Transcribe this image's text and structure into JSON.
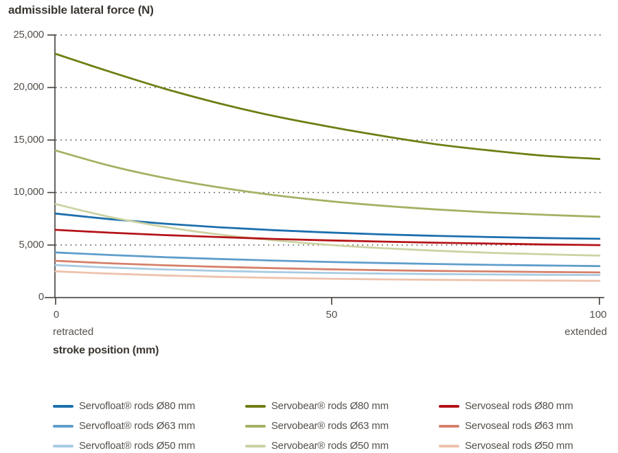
{
  "title": "admissible lateral force (N)",
  "axes": {
    "y_label": "admissible lateral force (N)",
    "x_label": "stroke position (mm)",
    "y_ticks": [
      "25,000",
      "20,000",
      "15,000",
      "10,000",
      "5,000",
      "0"
    ],
    "x_ticks": [
      "0",
      "50",
      "100"
    ],
    "x_annotation_left": "retracted",
    "x_annotation_right": "extended"
  },
  "chart_data": {
    "type": "line",
    "title": "admissible lateral force (N)",
    "xlabel": "stroke position (mm)",
    "ylabel": "admissible lateral force (N)",
    "xlim": [
      0,
      100
    ],
    "ylim": [
      0,
      25000
    ],
    "x_tick_values": [
      0,
      50,
      100
    ],
    "y_tick_values": [
      0,
      5000,
      10000,
      15000,
      20000,
      25000
    ],
    "grid": "horizontal-dotted",
    "legend_position": "below",
    "x": [
      0,
      10,
      20,
      30,
      40,
      50,
      60,
      70,
      80,
      90,
      100
    ],
    "series": [
      {
        "name": "Servofloat® rods Ø50 mm",
        "color": "#a7cbe2",
        "values": [
          3100,
          2860,
          2680,
          2540,
          2430,
          2350,
          2290,
          2240,
          2200,
          2170,
          2150
        ]
      },
      {
        "name": "Servofloat® rods Ø63 mm",
        "color": "#5f9dcb",
        "values": [
          4300,
          4060,
          3850,
          3680,
          3530,
          3400,
          3290,
          3200,
          3120,
          3060,
          3000
        ]
      },
      {
        "name": "Servofloat® rods Ø80 mm",
        "color": "#1c6fad",
        "values": [
          8000,
          7470,
          7040,
          6700,
          6420,
          6200,
          6020,
          5880,
          5760,
          5670,
          5600
        ]
      },
      {
        "name": "Servobear® rods Ø50 mm",
        "color": "#ccd2a2",
        "values": [
          8900,
          7680,
          6740,
          6010,
          5460,
          5030,
          4710,
          4460,
          4260,
          4120,
          4000
        ]
      },
      {
        "name": "Servobear® rods Ø63 mm",
        "color": "#a6b063",
        "values": [
          14000,
          12550,
          11400,
          10500,
          9770,
          9200,
          8750,
          8390,
          8100,
          7880,
          7700
        ]
      },
      {
        "name": "Servobear® rods Ø80 mm",
        "color": "#6f7d12",
        "values": [
          23200,
          21500,
          19900,
          18500,
          17300,
          16300,
          15400,
          14600,
          14000,
          13500,
          13200
        ]
      },
      {
        "name": "Servoseal rods Ø50 mm",
        "color": "#eec2ac",
        "values": [
          2500,
          2280,
          2110,
          1980,
          1880,
          1800,
          1740,
          1690,
          1650,
          1620,
          1600
        ]
      },
      {
        "name": "Servoseal rods Ø63 mm",
        "color": "#d5806a",
        "values": [
          3500,
          3270,
          3080,
          2930,
          2800,
          2700,
          2610,
          2540,
          2490,
          2440,
          2400
        ]
      },
      {
        "name": "Servoseal rods Ø80 mm",
        "color": "#b41217",
        "values": [
          6450,
          6180,
          5950,
          5760,
          5590,
          5450,
          5330,
          5230,
          5140,
          5060,
          5000
        ]
      }
    ]
  },
  "legend": {
    "items": [
      {
        "label": "Servofloat® rods Ø80 mm",
        "color": "#1c6fad"
      },
      {
        "label": "Servobear® rods Ø80 mm",
        "color": "#6f7d12"
      },
      {
        "label": "Servoseal rods Ø80 mm",
        "color": "#b41217"
      },
      {
        "label": "Servofloat® rods Ø63 mm",
        "color": "#5f9dcb"
      },
      {
        "label": "Servobear® rods Ø63 mm",
        "color": "#a6b063"
      },
      {
        "label": "Servoseal rods Ø63 mm",
        "color": "#d5806a"
      },
      {
        "label": "Servofloat® rods Ø50 mm",
        "color": "#a7cbe2"
      },
      {
        "label": "Servobear® rods Ø50 mm",
        "color": "#ccd2a2"
      },
      {
        "label": "Servoseal rods Ø50 mm",
        "color": "#eec2ac"
      }
    ]
  }
}
